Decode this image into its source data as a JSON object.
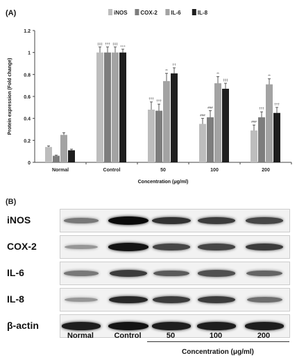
{
  "panel_a_label": "(A)",
  "panel_b_label": "(B)",
  "chart_data": {
    "type": "bar",
    "categories": [
      "Normal",
      "Control",
      "50",
      "100",
      "200"
    ],
    "series": [
      {
        "name": "iNOS",
        "color": "#bdbdbd",
        "values": [
          0.14,
          1.0,
          0.48,
          0.35,
          0.29
        ],
        "errors": [
          0.01,
          0.05,
          0.07,
          0.05,
          0.05
        ],
        "sig": [
          "",
          "‡‡‡",
          "†††",
          "###",
          "###"
        ]
      },
      {
        "name": "COX-2",
        "color": "#7d7d7d",
        "values": [
          0.06,
          1.0,
          0.47,
          0.41,
          0.41
        ],
        "errors": [
          0.005,
          0.05,
          0.06,
          0.06,
          0.05
        ],
        "sig": [
          "",
          "†††",
          "†††",
          "###",
          "†††"
        ]
      },
      {
        "name": "IL-6",
        "color": "#a3a3a3",
        "values": [
          0.25,
          1.0,
          0.74,
          0.72,
          0.71
        ],
        "errors": [
          0.02,
          0.05,
          0.07,
          0.06,
          0.05
        ],
        "sig": [
          "",
          "‡‡‡",
          "**",
          "**",
          "**"
        ]
      },
      {
        "name": "IL-8",
        "color": "#1e1e1e",
        "values": [
          0.11,
          1.0,
          0.81,
          0.67,
          0.45
        ],
        "errors": [
          0.01,
          0.03,
          0.05,
          0.05,
          0.05
        ],
        "sig": [
          "",
          "+++",
          "††",
          "‡‡‡",
          "†††"
        ]
      }
    ],
    "xlabel": "Concentration (μg/ml)",
    "ylabel": "Protein expression (Fold change)",
    "ylim": [
      0,
      1.2
    ],
    "yticks": [
      "0",
      "0.2",
      "0.4",
      "0.6",
      "0.8",
      "1",
      "1.2"
    ],
    "legend_position": "top"
  },
  "blot": {
    "rows": [
      "iNOS",
      "COX-2",
      "IL-6",
      "IL-8",
      "β-actin"
    ],
    "lanes": [
      "Normal",
      "Control",
      "50",
      "100",
      "200"
    ],
    "intensity": [
      [
        0.45,
        1.0,
        0.8,
        0.75,
        0.7
      ],
      [
        0.3,
        0.95,
        0.7,
        0.7,
        0.75
      ],
      [
        0.45,
        0.75,
        0.6,
        0.65,
        0.55
      ],
      [
        0.3,
        0.85,
        0.75,
        0.75,
        0.5
      ],
      [
        0.9,
        0.95,
        0.9,
        0.9,
        0.9
      ]
    ],
    "concentration_label": "Concentration (μg/ml)"
  }
}
